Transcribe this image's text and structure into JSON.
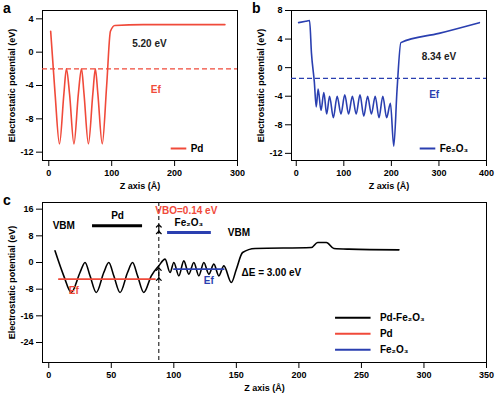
{
  "chart_data": [
    {
      "type": "line",
      "panel": "a",
      "xlabel": "Z axis (Å)",
      "ylabel": "Electrostatic potential (eV)",
      "xlim": [
        -10,
        300
      ],
      "ylim": [
        -13,
        5
      ],
      "xticks": [
        0,
        100,
        200,
        300
      ],
      "yticks": [
        -12,
        -8,
        -4,
        0,
        4
      ],
      "fermi_level": -2,
      "fermi_color": "#f04a3a",
      "series": [
        {
          "name": "Pd",
          "color": "#f04a3a",
          "x": [
            3,
            10,
            17,
            24,
            28,
            33,
            40,
            47,
            52,
            56,
            63,
            70,
            74,
            78,
            85,
            92,
            98,
            105,
            150,
            200,
            250,
            280
          ],
          "values": [
            2.5,
            -5,
            -11,
            -5,
            -2,
            -5,
            -11,
            -5,
            -2,
            -5,
            -11,
            -5,
            -2,
            -5,
            -11,
            -4,
            2.5,
            3.2,
            3.3,
            3.3,
            3.3,
            3.3
          ]
        }
      ],
      "annotations": [
        {
          "text": "5.20 eV",
          "x": 160,
          "y": 1,
          "color": "#222222"
        },
        {
          "text": "Ef",
          "x": 170,
          "y": -4.5,
          "color": "#f04a3a"
        }
      ]
    },
    {
      "type": "line",
      "panel": "b",
      "xlabel": "Z axis (Å)",
      "ylabel": "Electrostatic potential (eV)",
      "xlim": [
        -10,
        400
      ],
      "ylim": [
        -13,
        8
      ],
      "xticks": [
        0,
        100,
        200,
        300,
        400
      ],
      "yticks": [
        -12,
        -8,
        -4,
        0,
        4,
        8
      ],
      "fermi_level": -1.5,
      "fermi_color": "#2a3fb0",
      "series": [
        {
          "name": "Fe₂O₃",
          "color": "#2a3fb0",
          "x": [
            5,
            20,
            28,
            32,
            38,
            42,
            46,
            52,
            58,
            64,
            70,
            78,
            86,
            94,
            102,
            110,
            118,
            126,
            134,
            142,
            150,
            158,
            166,
            174,
            182,
            190,
            198,
            205,
            212,
            220,
            300,
            385
          ],
          "values": [
            6.3,
            6.5,
            6.6,
            2,
            -2,
            -5.5,
            -3,
            -6,
            -3.5,
            -6.5,
            -4,
            -7,
            -4,
            -6.5,
            -3.8,
            -6.5,
            -4,
            -6.5,
            -3.8,
            -6.8,
            -4,
            -6.5,
            -4,
            -7,
            -4,
            -7,
            -5,
            -11,
            -3,
            3.5,
            4.8,
            6.3
          ]
        }
      ],
      "annotations": [
        {
          "text": "8.34 eV",
          "x": 300,
          "y": 1.5,
          "color": "#222222"
        },
        {
          "text": "Ef",
          "x": 290,
          "y": -3.8,
          "color": "#2a3fb0"
        }
      ]
    },
    {
      "type": "line",
      "panel": "c",
      "xlabel": "Z axis (Å)",
      "ylabel": "Electrostatic potential (eV)",
      "xlim": [
        -5,
        350
      ],
      "ylim": [
        -30,
        18
      ],
      "xticks": [
        0,
        50,
        100,
        150,
        200,
        250,
        300,
        350
      ],
      "yticks": [
        -24,
        -16,
        -8,
        0,
        8,
        16
      ],
      "interface_x": 88,
      "series": [
        {
          "name": "Pd-Fe₂O₃",
          "color": "#000000",
          "x": [
            5,
            12,
            18,
            25,
            29,
            33,
            38,
            44,
            48,
            52,
            57,
            63,
            67,
            71,
            76,
            82,
            88,
            93,
            97,
            100,
            104,
            108,
            112,
            116,
            120,
            124,
            128,
            132,
            136,
            140,
            146,
            150,
            155,
            165,
            210,
            215,
            222,
            228,
            240,
            280
          ],
          "values": [
            3.5,
            -4,
            -9,
            -3,
            0,
            -4,
            -9,
            -3,
            0,
            -4,
            -9,
            -3,
            0,
            -4,
            -9,
            -4,
            -1,
            1,
            -3,
            0,
            -4,
            0.5,
            -3.5,
            0,
            -4,
            0,
            -3.5,
            -0.5,
            -4,
            -1,
            -6,
            -2,
            3,
            4.2,
            4.5,
            6,
            6,
            4.2,
            4,
            3.8
          ]
        },
        {
          "name": "Pd",
          "color": "#f04a3a",
          "x": [
            8,
            85
          ],
          "values": [
            -5,
            -5
          ]
        },
        {
          "name": "Fe₂O₃",
          "color": "#2a3fb0",
          "x": [
            100,
            140
          ],
          "values": [
            -2,
            -2
          ]
        }
      ],
      "levels": [
        {
          "x": [
            35,
            75
          ],
          "y": 11,
          "color": "#000000"
        },
        {
          "x": [
            95,
            130
          ],
          "y": 9,
          "color": "#2a3fb0"
        }
      ],
      "arrows": [
        {
          "x": 88,
          "y1": 9,
          "y2": 11
        },
        {
          "x": 88,
          "y1": -5,
          "y2": -2
        }
      ],
      "annotations": [
        {
          "text": "VBM",
          "x": 12,
          "y": 11,
          "color": "#000000"
        },
        {
          "text": "Pd",
          "x": 55,
          "y": 14,
          "color": "#000000"
        },
        {
          "text": "VBO=0.14 eV",
          "x": 110,
          "y": 15.5,
          "color": "#f04a3a"
        },
        {
          "text": "Fe₂O₃",
          "x": 112,
          "y": 12,
          "color": "#000000"
        },
        {
          "text": "VBM",
          "x": 152,
          "y": 9,
          "color": "#000000"
        },
        {
          "text": "ΔE = 3.00 eV",
          "x": 178,
          "y": -3,
          "color": "#000000"
        },
        {
          "text": "Ef",
          "x": 20,
          "y": -8.5,
          "color": "#f04a3a"
        },
        {
          "text": "Ef",
          "x": 128,
          "y": -5.5,
          "color": "#2a3fb0"
        }
      ]
    }
  ]
}
